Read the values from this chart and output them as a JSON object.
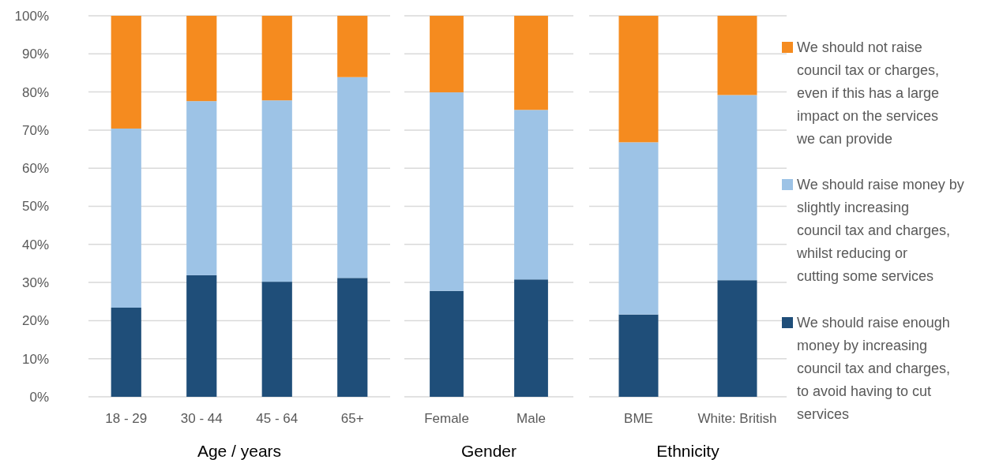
{
  "chart_data": [
    {
      "type": "bar",
      "stacked": true,
      "xlabel": "Age / years",
      "categories": [
        "18 - 29",
        "30 - 44",
        "45 - 64",
        "65+"
      ],
      "ylim": [
        0,
        100
      ],
      "yticks": [
        {
          "value": 0,
          "label": "0%"
        },
        {
          "value": 10,
          "label": "10%"
        },
        {
          "value": 20,
          "label": "20%"
        },
        {
          "value": 30,
          "label": "30%"
        },
        {
          "value": 40,
          "label": "40%"
        },
        {
          "value": 50,
          "label": "50%"
        },
        {
          "value": 60,
          "label": "60%"
        },
        {
          "value": 70,
          "label": "70%"
        },
        {
          "value": 80,
          "label": "80%"
        },
        {
          "value": 90,
          "label": "90%"
        },
        {
          "value": 100,
          "label": "100%"
        }
      ],
      "grid": "y",
      "legend": false,
      "series": [
        {
          "color": "#1f4e79",
          "values": [
            23.4,
            31.9,
            30.2,
            31.2
          ]
        },
        {
          "color": "#9dc3e6",
          "values": [
            47.0,
            45.7,
            47.6,
            52.7
          ]
        },
        {
          "color": "#f58b1f",
          "values": [
            29.6,
            22.4,
            22.2,
            16.1
          ]
        }
      ]
    },
    {
      "type": "bar",
      "stacked": true,
      "xlabel": "Gender",
      "categories": [
        "Female",
        "Male"
      ],
      "ylim": [
        0,
        100
      ],
      "yticks": [
        0,
        10,
        20,
        30,
        40,
        50,
        60,
        70,
        80,
        90,
        100
      ],
      "grid": "y",
      "legend": false,
      "tick_labels": "x",
      "series": [
        {
          "color": "#1f4e79",
          "values": [
            27.8,
            30.8
          ]
        },
        {
          "color": "#9dc3e6",
          "values": [
            52.1,
            44.5
          ]
        },
        {
          "color": "#f58b1f",
          "values": [
            20.1,
            24.7
          ]
        }
      ]
    },
    {
      "type": "bar",
      "stacked": true,
      "xlabel": "Ethnicity",
      "categories": [
        "BME",
        "White: British"
      ],
      "ylim": [
        0,
        100
      ],
      "yticks": [
        0,
        10,
        20,
        30,
        40,
        50,
        60,
        70,
        80,
        90,
        100
      ],
      "grid": "y",
      "legend": "right",
      "tick_labels": "x",
      "series": [
        {
          "name": "We should raise enough money by increasing council tax and charges, to avoid having to cut services",
          "color": "#1f4e79",
          "values": [
            21.6,
            30.6
          ]
        },
        {
          "name": "We should raise money by slightly increasing council tax and charges, whilst reducing or cutting some services",
          "color": "#9dc3e6",
          "values": [
            45.2,
            48.6
          ]
        },
        {
          "name": "We should not raise council tax or charges, even if this has a large impact on the services we can provide",
          "color": "#f58b1f",
          "values": [
            33.2,
            20.8
          ]
        }
      ]
    }
  ]
}
